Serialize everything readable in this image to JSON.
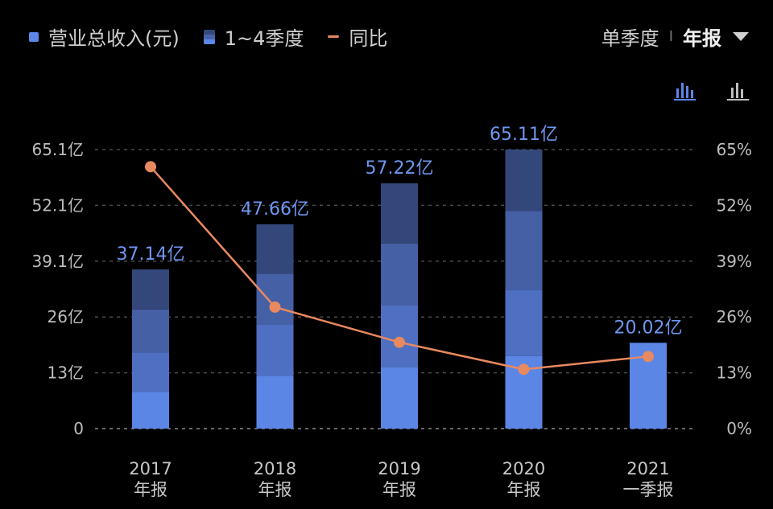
{
  "legend": {
    "revenue": "营业总收入(元)",
    "quarters": "1~4季度",
    "yoy": "同比"
  },
  "period_switch": {
    "quarterly": "单季度",
    "separator": "I",
    "annual": "年报",
    "selected": "annual"
  },
  "icons": {
    "view_stacked": "bar-chart-icon-active",
    "view_single": "bar-chart-icon"
  },
  "colors": {
    "bar_q1": "#5b86e6",
    "bar_q2": "#4f6fc2",
    "bar_q3": "#4660a6",
    "bar_q4": "#34477a",
    "line": "#e8895f",
    "data_label": "#6f97f0"
  },
  "chart_data": {
    "type": "bar",
    "categories": [
      [
        "2017",
        "年报"
      ],
      [
        "2018",
        "年报"
      ],
      [
        "2019",
        "年报"
      ],
      [
        "2020",
        "年报"
      ],
      [
        "2021",
        "一季报"
      ]
    ],
    "quarters": [
      [
        8.6,
        9.2,
        10.0,
        9.34
      ],
      [
        12.3,
        11.9,
        11.9,
        11.56
      ],
      [
        14.4,
        14.3,
        14.5,
        14.02
      ],
      [
        16.9,
        15.5,
        18.4,
        14.31
      ],
      [
        20.02
      ]
    ],
    "totals": [
      37.14,
      47.66,
      57.22,
      65.11,
      20.02
    ],
    "total_labels": [
      "37.14亿",
      "47.66亿",
      "57.22亿",
      "65.11亿",
      "20.02亿"
    ],
    "yoy_percent": [
      61,
      28.3,
      20.1,
      13.8,
      16.8
    ],
    "y_left_ticks": [
      "0",
      "13亿",
      "26亿",
      "39.1亿",
      "52.1亿",
      "65.1亿"
    ],
    "y_right_ticks": [
      "0%",
      "13%",
      "26%",
      "39%",
      "52%",
      "65%"
    ],
    "ylim_left": [
      0,
      65.1
    ],
    "ylim_right": [
      0,
      65
    ],
    "grid": true
  }
}
